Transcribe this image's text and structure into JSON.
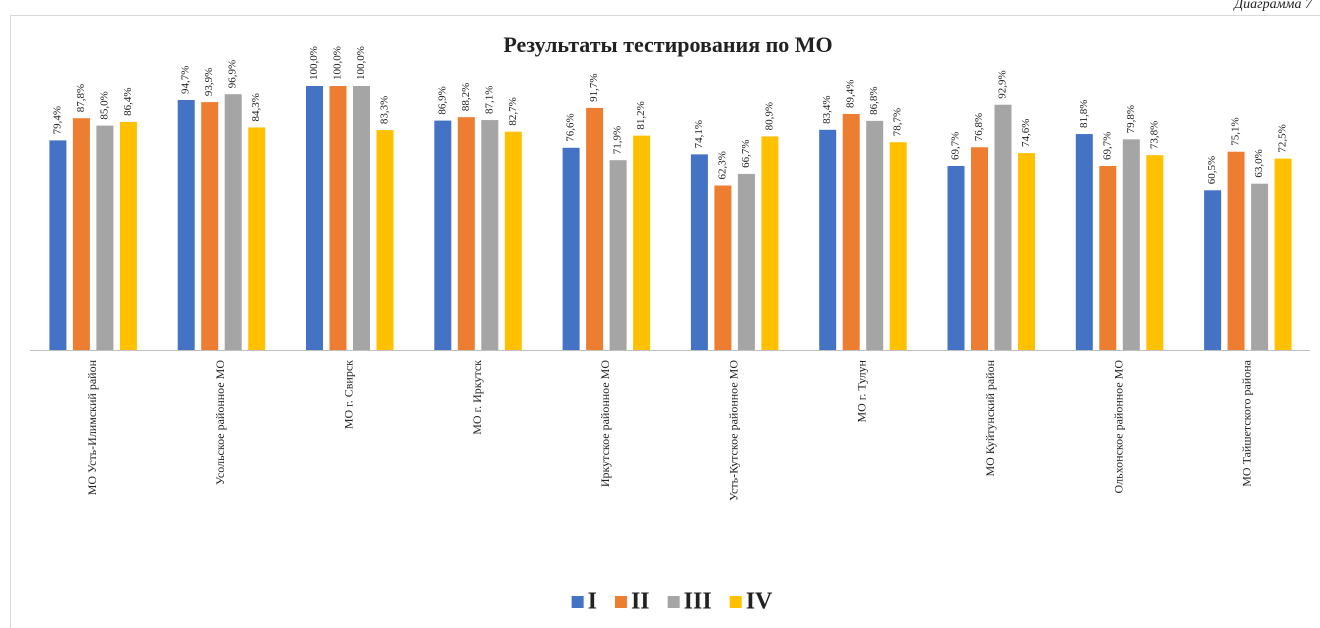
{
  "caption": "Диаграмма 7",
  "chart_data": {
    "type": "bar",
    "title": "Результаты тестирования по МО",
    "categories": [
      "МО Усть-Илимский район",
      "Усольское районное МО",
      "МО г. Свирск",
      "МО г. Иркутск",
      "Иркутское районное МО",
      "Усть-Кутское районное МО",
      "МО г. Тулун",
      "МО Куйтунский район",
      "Ольхонское районное МО",
      "МО Тайшетского района"
    ],
    "series": [
      {
        "name": "I",
        "color": "#4472c4",
        "values": [
          79.4,
          94.7,
          100.0,
          86.9,
          76.6,
          74.1,
          83.4,
          69.7,
          81.8,
          60.5
        ],
        "value_labels": [
          "79,4%",
          "94,7%",
          "100,0%",
          "86,9%",
          "76,6%",
          "74,1%",
          "83,4%",
          "69,7%",
          "81,8%",
          "60,5%"
        ]
      },
      {
        "name": "II",
        "color": "#ed7d31",
        "values": [
          87.8,
          93.9,
          100.0,
          88.2,
          91.7,
          62.3,
          89.4,
          76.8,
          69.7,
          75.1
        ],
        "value_labels": [
          "87,8%",
          "93,9%",
          "100,0%",
          "88,2%",
          "91,7%",
          "62,3%",
          "89,4%",
          "76,8%",
          "69,7%",
          "75,1%"
        ]
      },
      {
        "name": "III",
        "color": "#a5a5a5",
        "values": [
          85.0,
          96.9,
          100.0,
          87.1,
          71.9,
          66.7,
          86.8,
          92.9,
          79.8,
          63.0
        ],
        "value_labels": [
          "85,0%",
          "96,9%",
          "100,0%",
          "87,1%",
          "71,9%",
          "66,7%",
          "86,8%",
          "92,9%",
          "79,8%",
          "63,0%"
        ]
      },
      {
        "name": "IV",
        "color": "#ffc000",
        "values": [
          86.4,
          84.3,
          83.3,
          82.7,
          81.2,
          80.9,
          78.7,
          74.6,
          73.8,
          72.5
        ],
        "value_labels": [
          "86,4%",
          "84,3%",
          "83,3%",
          "82,7%",
          "81,2%",
          "80,9%",
          "78,7%",
          "74,6%",
          "73,8%",
          "72,5%"
        ]
      }
    ],
    "ylim": [
      0,
      100
    ],
    "legend": "bottom"
  }
}
